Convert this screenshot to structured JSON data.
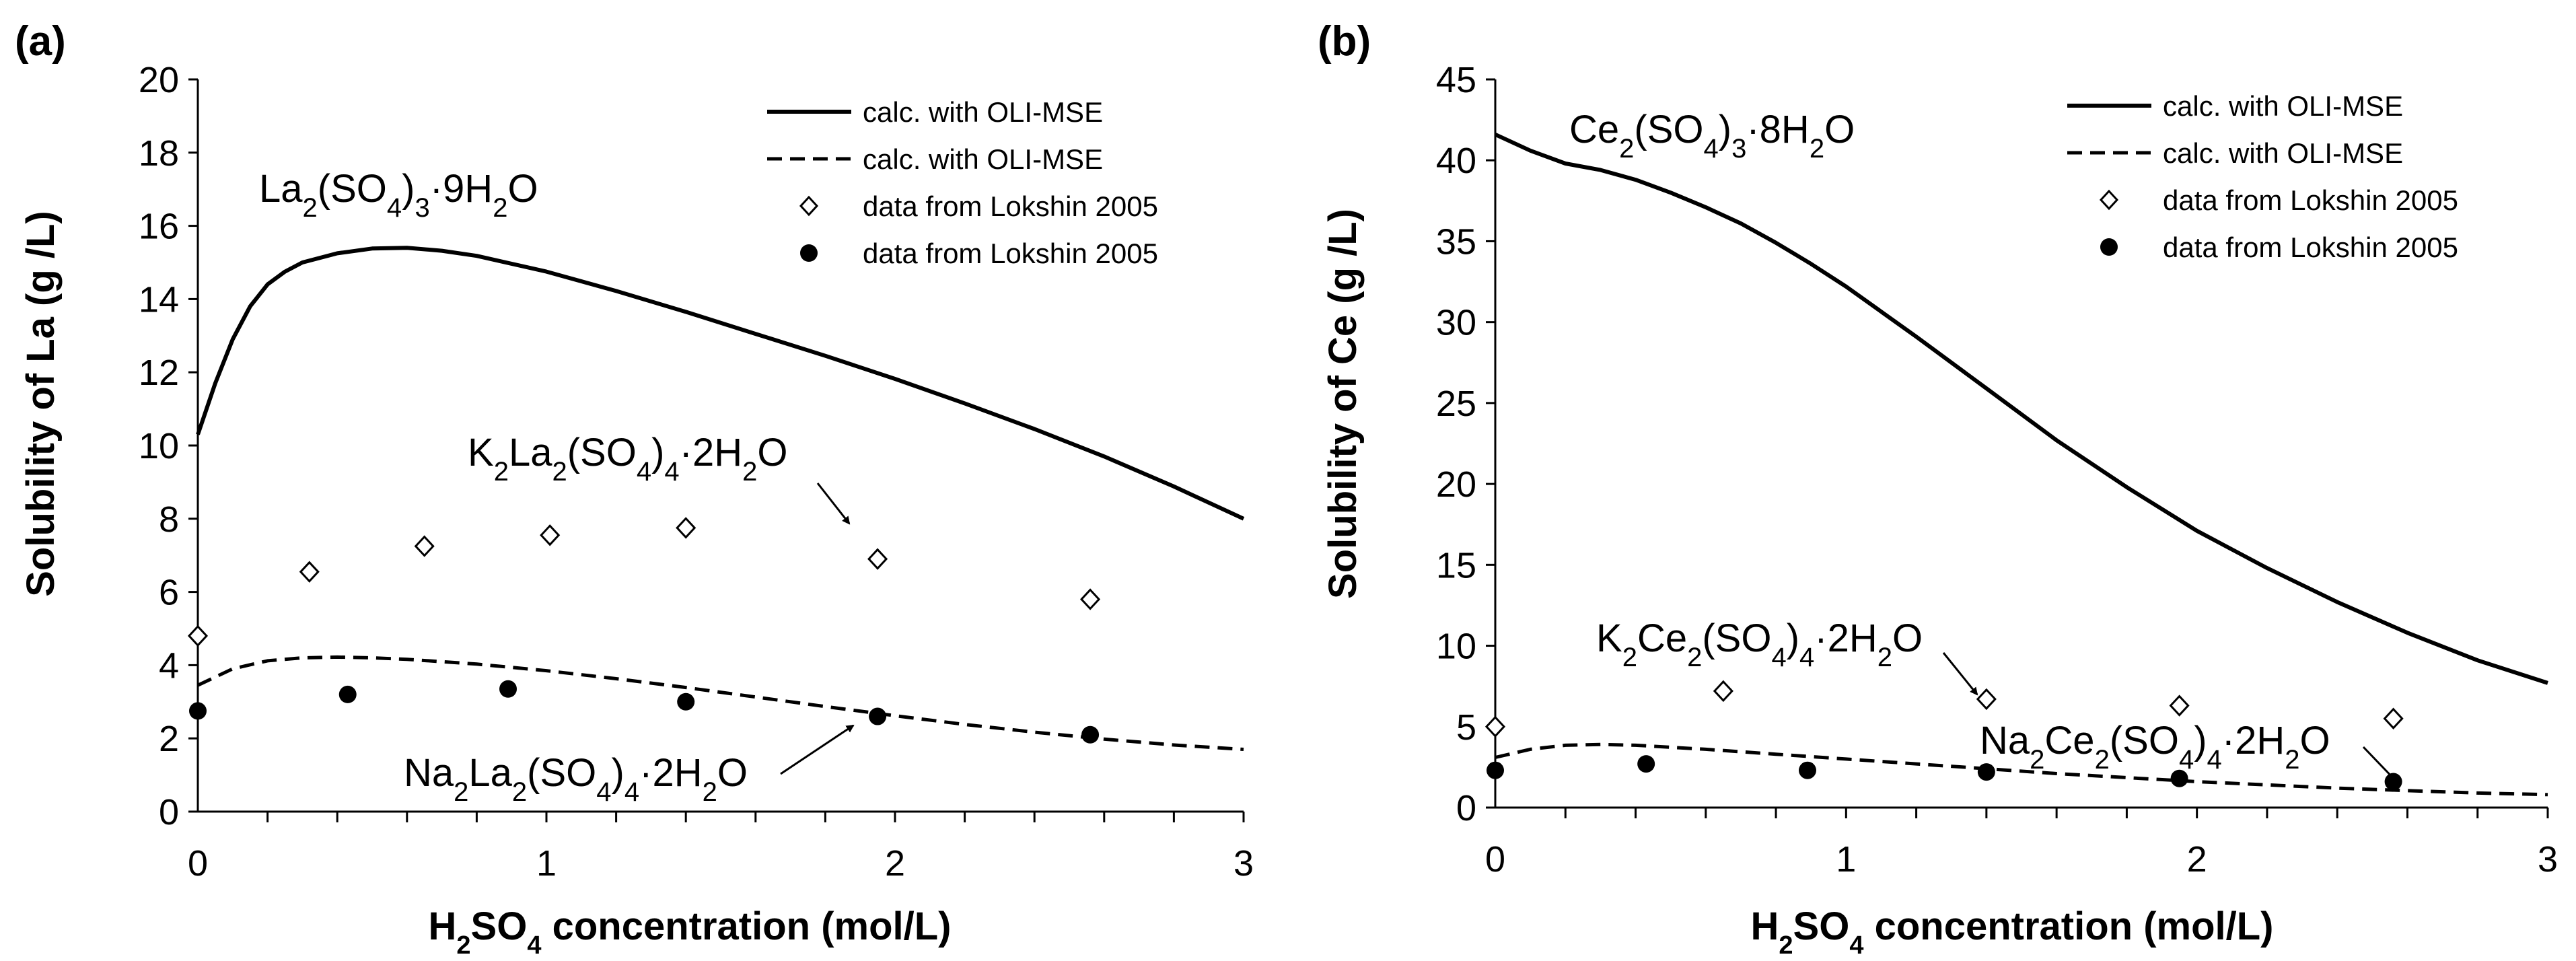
{
  "chart_data": [
    {
      "type": "line",
      "panel": "(a)",
      "xlabel": [
        "H",
        "2",
        "SO",
        "4",
        " concentration (mol/L)"
      ],
      "ylabel": "Solubility of La (g /L)",
      "xlim": [
        0,
        3
      ],
      "ylim": [
        0,
        20
      ],
      "xticks": [
        0,
        1,
        2,
        3
      ],
      "xminor": 0.2,
      "yticks": [
        0,
        2,
        4,
        6,
        8,
        10,
        12,
        14,
        16,
        18,
        20
      ],
      "legend": [
        {
          "label": "calc. with OLI-MSE",
          "style": "solid"
        },
        {
          "label": "calc. with OLI-MSE",
          "style": "dashed"
        },
        {
          "label": "data from Lokshin 2005",
          "style": "diamond"
        },
        {
          "label": "data from Lokshin 2005",
          "style": "dot"
        }
      ],
      "series": [
        {
          "name": "La2(SO4)3·9H2O calc. with OLI-MSE",
          "style": "solid",
          "x": [
            0,
            0.05,
            0.1,
            0.15,
            0.2,
            0.25,
            0.3,
            0.4,
            0.5,
            0.6,
            0.7,
            0.8,
            1.0,
            1.2,
            1.4,
            1.6,
            1.8,
            2.0,
            2.2,
            2.4,
            2.6,
            2.8,
            3.0
          ],
          "y": [
            10.3,
            11.7,
            12.9,
            13.8,
            14.4,
            14.75,
            15.0,
            15.25,
            15.38,
            15.4,
            15.32,
            15.18,
            14.75,
            14.22,
            13.65,
            13.05,
            12.45,
            11.82,
            11.15,
            10.45,
            9.7,
            8.88,
            8.0
          ]
        },
        {
          "name": "Na2La2(SO4)4·2H2O calc. with OLI-MSE",
          "style": "dashed",
          "x": [
            0,
            0.1,
            0.2,
            0.3,
            0.4,
            0.5,
            0.6,
            0.8,
            1.0,
            1.2,
            1.4,
            1.6,
            1.8,
            2.0,
            2.2,
            2.4,
            2.6,
            2.8,
            3.0
          ],
          "y": [
            3.45,
            3.9,
            4.12,
            4.2,
            4.22,
            4.2,
            4.16,
            4.03,
            3.85,
            3.63,
            3.39,
            3.13,
            2.87,
            2.62,
            2.38,
            2.17,
            1.98,
            1.82,
            1.7
          ]
        },
        {
          "name": "K2La2(SO4)4·2H2O data from Lokshin 2005",
          "style": "diamond",
          "x": [
            0,
            0.32,
            0.65,
            1.01,
            1.4,
            1.95,
            2.56
          ],
          "y": [
            4.8,
            6.55,
            7.25,
            7.55,
            7.75,
            6.9,
            5.8
          ]
        },
        {
          "name": "Na2La2(SO4)4·2H2O data from Lokshin 2005",
          "style": "dot",
          "x": [
            0,
            0.43,
            0.89,
            1.4,
            1.95,
            2.56
          ],
          "y": [
            2.75,
            3.2,
            3.35,
            3.0,
            2.6,
            2.1
          ]
        }
      ],
      "annotations": [
        {
          "parts": [
            "La",
            "2",
            "(SO",
            "4",
            ")",
            "3",
            "·9H",
            "2",
            "O"
          ]
        },
        {
          "parts": [
            "K",
            "2",
            "La",
            "2",
            "(SO",
            "4",
            ")",
            "4",
            "·2H",
            "2",
            "O"
          ]
        },
        {
          "parts": [
            "Na",
            "2",
            "La",
            "2",
            "(SO",
            "4",
            ")",
            "4",
            "·2H",
            "2",
            "O"
          ]
        }
      ]
    },
    {
      "type": "line",
      "panel": "(b)",
      "xlabel": [
        "H",
        "2",
        "SO",
        "4",
        " concentration (mol/L)"
      ],
      "ylabel": "Solubility of Ce (g /L)",
      "xlim": [
        0,
        3
      ],
      "ylim": [
        0,
        45
      ],
      "xticks": [
        0,
        1,
        2,
        3
      ],
      "xminor": 0.2,
      "yticks": [
        0,
        5,
        10,
        15,
        20,
        25,
        30,
        35,
        40,
        45
      ],
      "legend": [
        {
          "label": "calc. with OLI-MSE",
          "style": "solid"
        },
        {
          "label": "calc. with OLI-MSE",
          "style": "dashed"
        },
        {
          "label": "data from Lokshin 2005",
          "style": "diamond"
        },
        {
          "label": "data from Lokshin 2005",
          "style": "dot"
        }
      ],
      "series": [
        {
          "name": "Ce2(SO4)3·8H2O calc. with OLI-MSE",
          "style": "solid",
          "x": [
            0,
            0.1,
            0.2,
            0.3,
            0.4,
            0.5,
            0.6,
            0.7,
            0.8,
            0.9,
            1.0,
            1.2,
            1.4,
            1.6,
            1.8,
            2.0,
            2.2,
            2.4,
            2.6,
            2.8,
            3.0
          ],
          "y": [
            41.6,
            40.6,
            39.8,
            39.4,
            38.8,
            38.0,
            37.1,
            36.1,
            34.9,
            33.6,
            32.2,
            29.1,
            25.9,
            22.7,
            19.8,
            17.1,
            14.8,
            12.7,
            10.8,
            9.1,
            7.7
          ]
        },
        {
          "name": "Na2Ce2(SO4)4·2H2O calc. with OLI-MSE",
          "style": "dashed",
          "x": [
            0,
            0.1,
            0.2,
            0.3,
            0.4,
            0.6,
            0.8,
            1.0,
            1.2,
            1.4,
            1.6,
            1.8,
            2.0,
            2.2,
            2.4,
            2.6,
            2.8,
            3.0
          ],
          "y": [
            3.1,
            3.6,
            3.85,
            3.9,
            3.85,
            3.6,
            3.3,
            3.0,
            2.7,
            2.4,
            2.1,
            1.85,
            1.6,
            1.4,
            1.2,
            1.05,
            0.9,
            0.8
          ]
        },
        {
          "name": "K2Ce2(SO4)4·2H2O data from Lokshin 2005",
          "style": "diamond",
          "x": [
            0,
            0.65,
            1.4,
            1.95,
            2.56
          ],
          "y": [
            5.0,
            7.2,
            6.7,
            6.3,
            5.5
          ]
        },
        {
          "name": "Na2Ce2(SO4)4·2H2O data from Lokshin 2005",
          "style": "dot",
          "x": [
            0,
            0.43,
            0.89,
            1.4,
            1.95,
            2.56
          ],
          "y": [
            2.3,
            2.7,
            2.3,
            2.2,
            1.8,
            1.6
          ]
        }
      ],
      "annotations": [
        {
          "parts": [
            "Ce",
            "2",
            "(SO",
            "4",
            ")",
            "3",
            "·8H",
            "2",
            "O"
          ]
        },
        {
          "parts": [
            "K",
            "2",
            "Ce",
            "2",
            "(SO",
            "4",
            ")",
            "4",
            "·2H",
            "2",
            "O"
          ]
        },
        {
          "parts": [
            "Na",
            "2",
            "Ce",
            "2",
            "(SO",
            "4",
            ")",
            "4",
            "·2H",
            "2",
            "O"
          ]
        }
      ]
    }
  ]
}
